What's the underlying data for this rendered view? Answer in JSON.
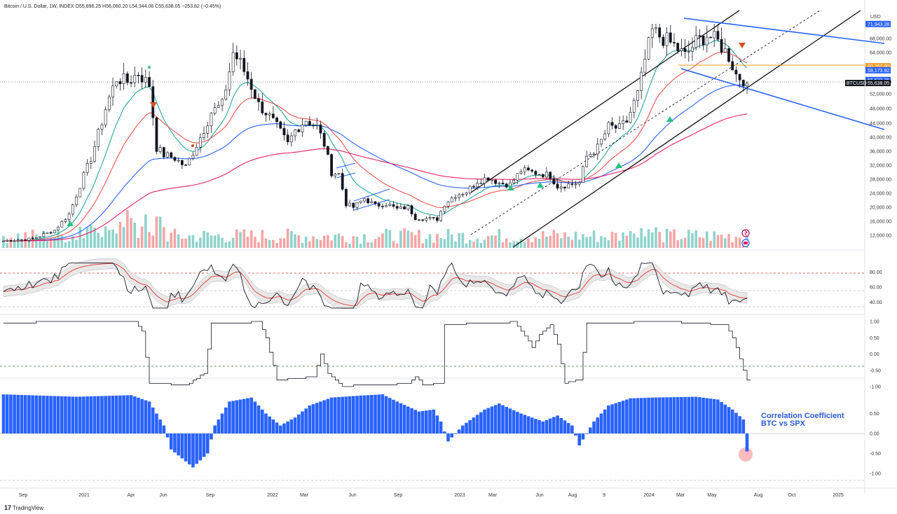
{
  "header": {
    "title": "Bitcoin / U.S. Dollar, 1W, INDEX  O55,896.25  H56,060.20  L54,344.06  C55,638.05  −253.82 (−0.45%)"
  },
  "price_axis": {
    "currency": "USD",
    "ticks": [
      "68,000.00",
      "64,000.00",
      "56,000.00",
      "52,000.00",
      "48,000.00",
      "44,000.00",
      "40,000.00",
      "36,000.00",
      "32,000.00",
      "28,000.00",
      "24,000.00",
      "20,000.00",
      "16,000.00",
      "12,000.00"
    ],
    "ticks_values": [
      68000,
      64000,
      56000,
      52000,
      48000,
      44000,
      40000,
      36000,
      32000,
      28000,
      24000,
      20000,
      16000,
      12000
    ],
    "tags": [
      {
        "label": "71,943.28",
        "color": "#2962ff",
        "value": 71943
      },
      {
        "label": "60,257.60",
        "color": "#f59a23",
        "value": 60257
      },
      {
        "label": "59,173.92",
        "color": "#2962ff",
        "value": 59174
      },
      {
        "label": "56,522.25",
        "color": "#2962ff",
        "value": 56522
      },
      {
        "label": "55,638.05",
        "color": "#131722",
        "value": 55638,
        "prefix": "BTCUSD"
      }
    ]
  },
  "time_axis": {
    "labels": [
      "Sep",
      "2021",
      "Apr",
      "Jun",
      "Sep",
      "2022",
      "Mar",
      "Jun",
      "Sep",
      "2023",
      "Mar",
      "Jun",
      "Aug",
      "9",
      "2024",
      "Mar",
      "May",
      "Aug",
      "Oct",
      "2025"
    ]
  },
  "rsi_axis": {
    "ticks": [
      "80.00",
      "60.00",
      "40.00"
    ],
    "ticks_values": [
      80,
      60,
      40
    ]
  },
  "corr1_axis": {
    "ticks": [
      "1.00",
      "0.50",
      "0.00",
      "-0.50",
      "-1.00"
    ],
    "ticks_values": [
      1,
      0.5,
      0,
      -0.5,
      -1
    ]
  },
  "corr2_axis": {
    "ticks": [
      "0.50",
      "0.00",
      "-0.50",
      "-1.00"
    ],
    "ticks_values": [
      0.5,
      0,
      -0.5,
      -1
    ]
  },
  "annotation": {
    "line1": "Correlation Coefficient",
    "line2": "BTC vs SPX"
  },
  "logo": "TradingView",
  "colors": {
    "up": "#26a69a",
    "down": "#ef5350",
    "candle_body": "#131722",
    "ema_fast": "#26a69a",
    "ema_mid": "#ef5350",
    "ema_slow": "#2962ff",
    "ema_long": "#e91e63",
    "channel": "#000000",
    "wedge": "#2962ff",
    "level": "#f59a23",
    "hist": "#2962ff",
    "highlight": "#f8a5a5"
  },
  "chart_data": [
    {
      "type": "candlestick",
      "title": "Bitcoin / U.S. Dollar, 1W, INDEX",
      "ylabel": "USD",
      "ylim": [
        10000,
        74000
      ],
      "x": [
        "Sep",
        "2021",
        "Apr",
        "Jun",
        "Sep",
        "2022",
        "Mar",
        "Jun",
        "Sep",
        "2023",
        "Mar",
        "Jun",
        "Aug",
        "9",
        "2024",
        "Mar",
        "May"
      ],
      "close_approx": [
        10500,
        29000,
        58000,
        35000,
        47000,
        47000,
        44000,
        20000,
        19500,
        16600,
        24000,
        30000,
        29000,
        26500,
        42500,
        70000,
        66000
      ],
      "last": {
        "open": 55896.25,
        "high": 56060.2,
        "low": 54344.06,
        "close": 55638.05,
        "change": -253.82,
        "change_pct": -0.45
      }
    },
    {
      "type": "line",
      "name": "RSI",
      "ylim": [
        20,
        100
      ],
      "levels": [
        80,
        50,
        30
      ]
    },
    {
      "type": "line",
      "name": "Correlation",
      "ylim": [
        -1.1,
        1.1
      ]
    },
    {
      "type": "bar",
      "name": "Correlation Coefficient BTC vs SPX",
      "ylim": [
        -1.1,
        1.0
      ],
      "last_value": -0.45
    }
  ]
}
